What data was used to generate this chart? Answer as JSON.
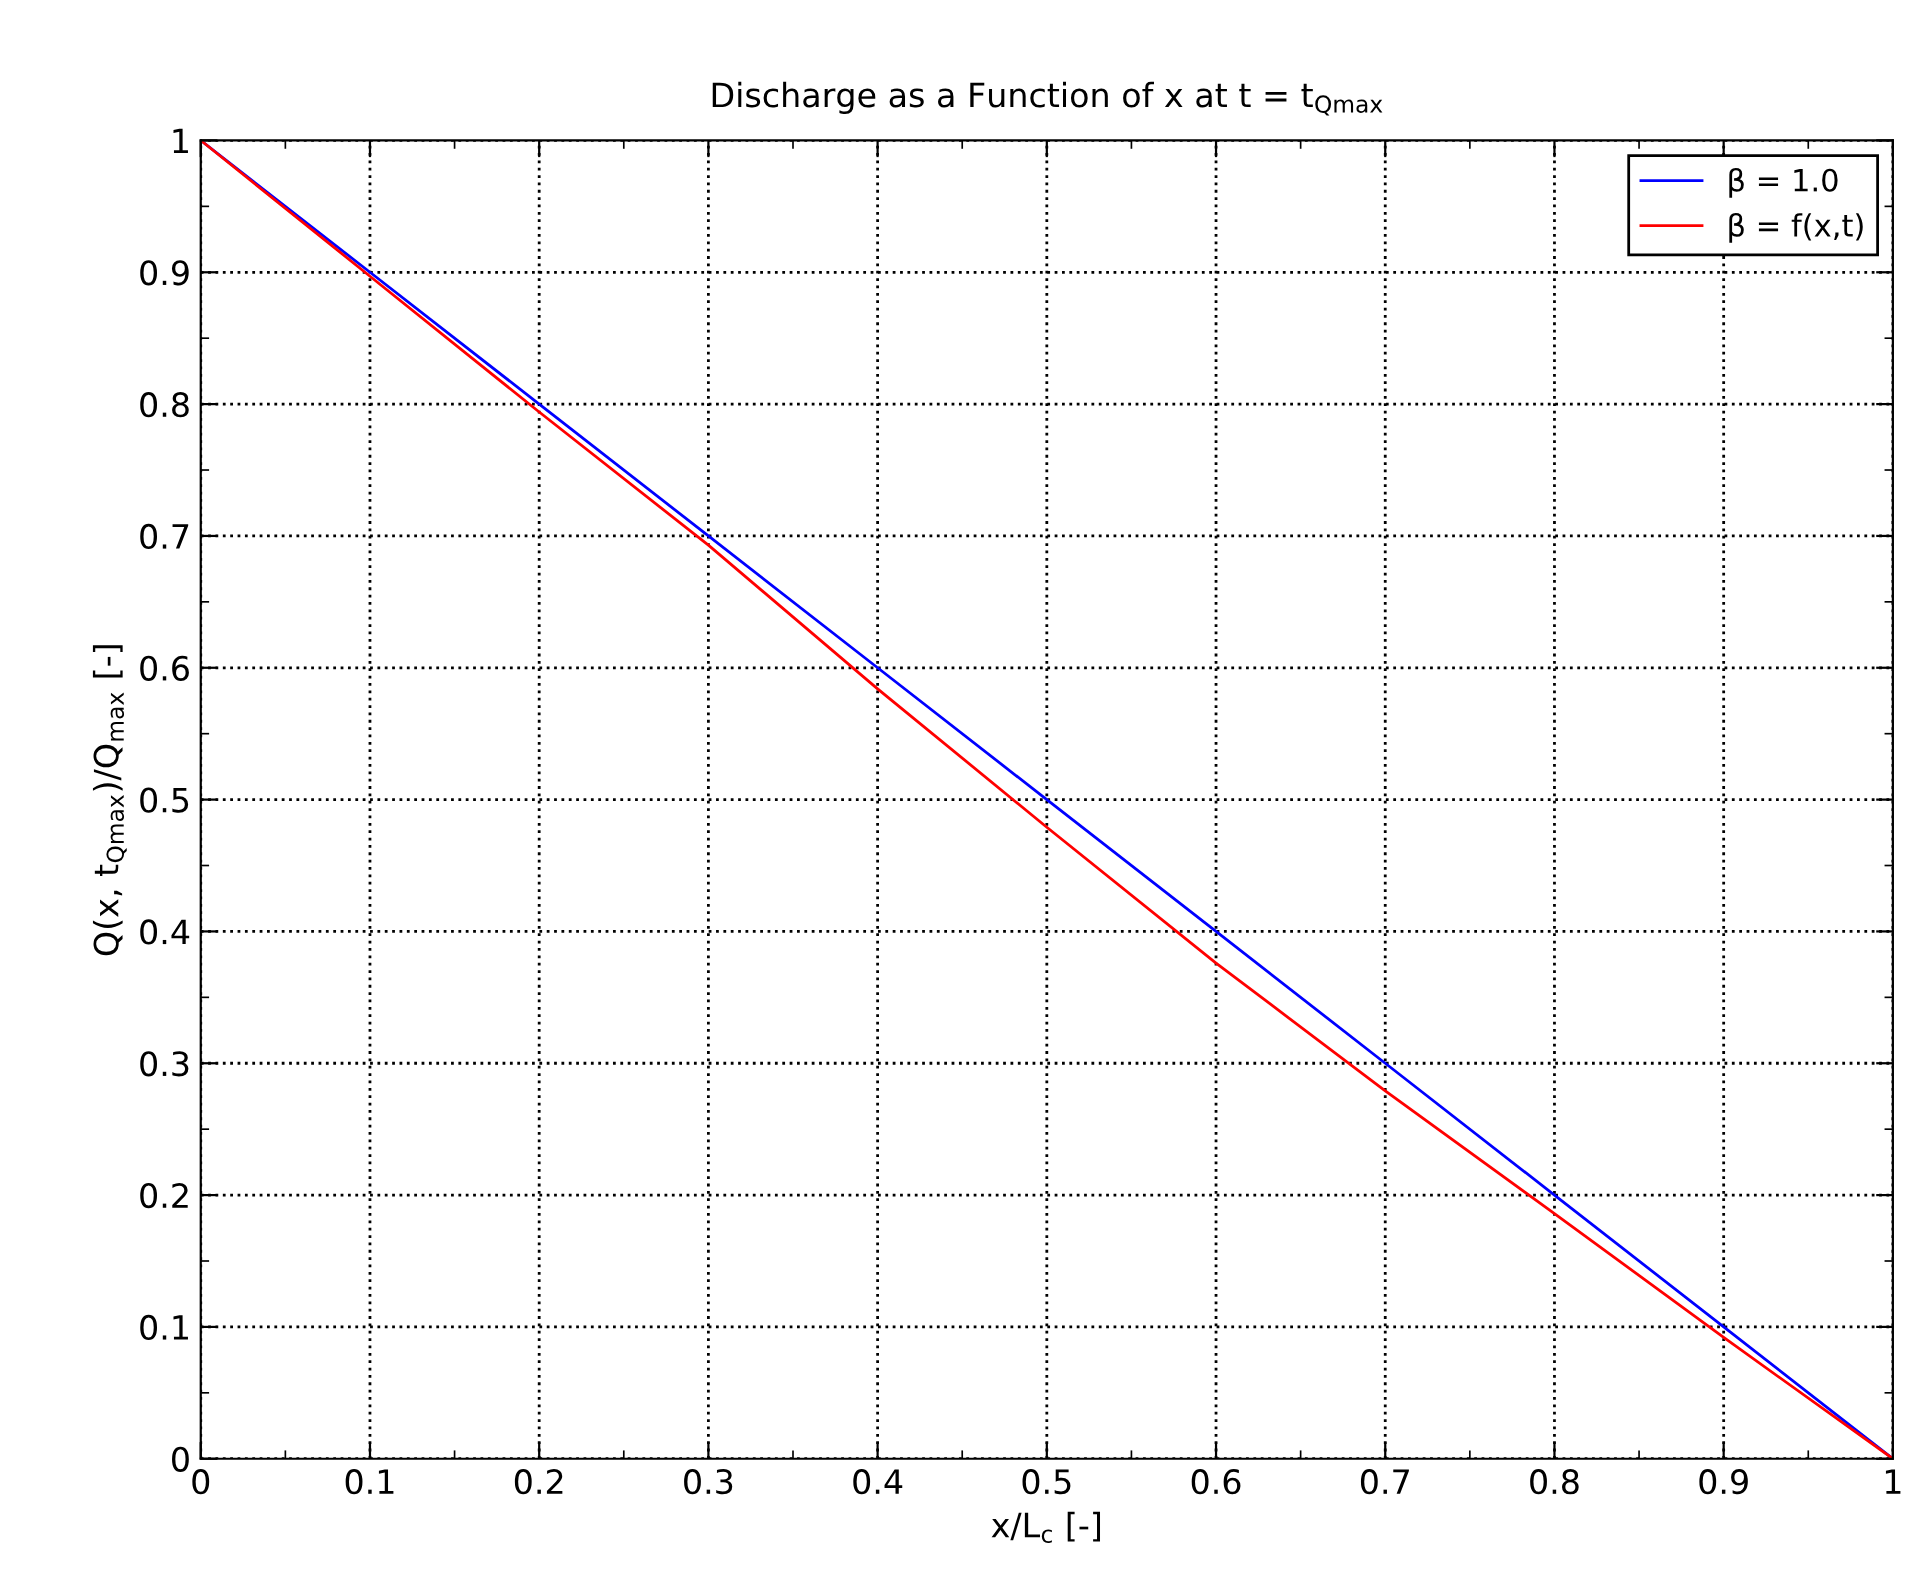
{
  "chart_data": {
    "type": "line",
    "title": "Discharge as a Function of x at t = t$_{Qmax}$",
    "xlabel": "x/L$_{c}$ [-]",
    "ylabel": "Q(x, t$_{Qmax}$)/Q$_{max}$ [-]",
    "x": [
      0,
      0.1,
      0.2,
      0.3,
      0.4,
      0.5,
      0.6,
      0.7,
      0.8,
      0.9,
      1
    ],
    "series": [
      {
        "name": "β = 1.0",
        "color": "#0000ff",
        "values": [
          1,
          0.9,
          0.8,
          0.7,
          0.6,
          0.5,
          0.4,
          0.3,
          0.2,
          0.1,
          0
        ]
      },
      {
        "name": "β = f(x,t)",
        "color": "#ff0000",
        "values": [
          1,
          0.897,
          0.794,
          0.693,
          0.584,
          0.479,
          0.376,
          0.279,
          0.186,
          0.092,
          0
        ]
      }
    ],
    "xlim": [
      0,
      1
    ],
    "ylim": [
      0,
      1
    ],
    "xticks": [
      0,
      0.1,
      0.2,
      0.3,
      0.4,
      0.5,
      0.6,
      0.7,
      0.8,
      0.9,
      1
    ],
    "yticks": [
      0,
      0.1,
      0.2,
      0.3,
      0.4,
      0.5,
      0.6,
      0.7,
      0.8,
      0.9,
      1
    ],
    "grid": true,
    "legend": "top right",
    "marker": "none",
    "line_style": "solid"
  }
}
